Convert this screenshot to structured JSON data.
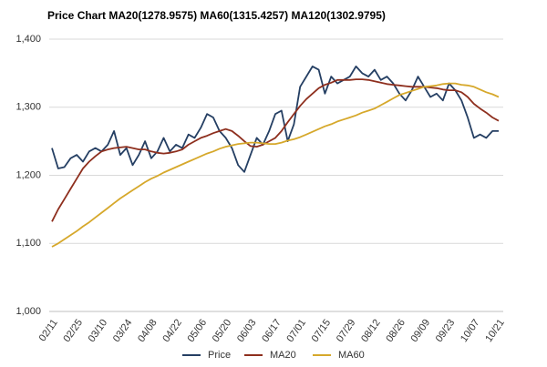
{
  "chart_data": {
    "type": "line",
    "title": "Price Chart MA20(1278.9575) MA60(1315.4257) MA120(1302.9795)",
    "categories": [
      "02/11",
      null,
      null,
      null,
      "02/25",
      null,
      null,
      null,
      "03/10",
      null,
      null,
      null,
      "03/24",
      null,
      null,
      null,
      "04/08",
      null,
      null,
      null,
      "04/22",
      null,
      null,
      null,
      "05/06",
      null,
      null,
      null,
      "05/20",
      null,
      null,
      null,
      "06/03",
      null,
      null,
      null,
      "06/17",
      null,
      null,
      null,
      "07/01",
      null,
      null,
      null,
      "07/15",
      null,
      null,
      null,
      "07/29",
      null,
      null,
      null,
      "08/12",
      null,
      null,
      null,
      "08/26",
      null,
      null,
      null,
      "09/09",
      null,
      null,
      null,
      "09/23",
      null,
      null,
      null,
      "10/07",
      null,
      null,
      null,
      "10/21"
    ],
    "series": [
      {
        "name": "Price",
        "color": "#253f63",
        "values": [
          1240,
          1210,
          1212,
          1225,
          1230,
          1220,
          1235,
          1240,
          1235,
          1245,
          1265,
          1230,
          1240,
          1215,
          1230,
          1250,
          1225,
          1235,
          1255,
          1235,
          1245,
          1240,
          1260,
          1255,
          1270,
          1290,
          1285,
          1265,
          1255,
          1240,
          1215,
          1205,
          1230,
          1255,
          1245,
          1265,
          1290,
          1295,
          1250,
          1275,
          1330,
          1345,
          1360,
          1355,
          1320,
          1345,
          1335,
          1340,
          1345,
          1360,
          1350,
          1345,
          1355,
          1340,
          1345,
          1335,
          1320,
          1310,
          1325,
          1345,
          1330,
          1315,
          1320,
          1310,
          1335,
          1325,
          1310,
          1285,
          1255,
          1260,
          1255,
          1265,
          1265
        ]
      },
      {
        "name": "MA20",
        "color": "#8e2f1e",
        "values": [
          1132,
          1150,
          1165,
          1180,
          1195,
          1210,
          1220,
          1228,
          1235,
          1238,
          1240,
          1241,
          1242,
          1240,
          1238,
          1238,
          1235,
          1233,
          1232,
          1233,
          1235,
          1238,
          1245,
          1250,
          1255,
          1258,
          1262,
          1265,
          1268,
          1265,
          1258,
          1250,
          1243,
          1242,
          1245,
          1250,
          1255,
          1265,
          1278,
          1290,
          1302,
          1312,
          1320,
          1328,
          1333,
          1336,
          1340,
          1340,
          1340,
          1341,
          1341,
          1340,
          1338,
          1336,
          1334,
          1333,
          1332,
          1331,
          1330,
          1330,
          1330,
          1329,
          1328,
          1326,
          1325,
          1325,
          1322,
          1315,
          1305,
          1298,
          1292,
          1285,
          1280
        ]
      },
      {
        "name": "MA60",
        "color": "#d6a82b",
        "values": [
          1095,
          1100,
          1106,
          1112,
          1118,
          1125,
          1131,
          1138,
          1145,
          1152,
          1159,
          1166,
          1172,
          1178,
          1184,
          1190,
          1195,
          1199,
          1204,
          1208,
          1212,
          1216,
          1220,
          1224,
          1228,
          1232,
          1235,
          1239,
          1242,
          1244,
          1246,
          1247,
          1248,
          1248,
          1247,
          1246,
          1246,
          1248,
          1251,
          1253,
          1256,
          1260,
          1264,
          1268,
          1272,
          1275,
          1279,
          1282,
          1285,
          1288,
          1292,
          1295,
          1298,
          1303,
          1308,
          1313,
          1318,
          1321,
          1324,
          1327,
          1330,
          1331,
          1332,
          1334,
          1335,
          1335,
          1333,
          1332,
          1330,
          1326,
          1322,
          1319,
          1315
        ]
      }
    ],
    "ylim": [
      1000,
      1400
    ],
    "yticks": [
      {
        "value": 1000,
        "label": "1,000"
      },
      {
        "value": 1100,
        "label": "1,100"
      },
      {
        "value": 1200,
        "label": "1,200"
      },
      {
        "value": 1300,
        "label": "1,300"
      },
      {
        "value": 1400,
        "label": "1,400"
      }
    ],
    "grid": true,
    "legend": "bottom"
  }
}
